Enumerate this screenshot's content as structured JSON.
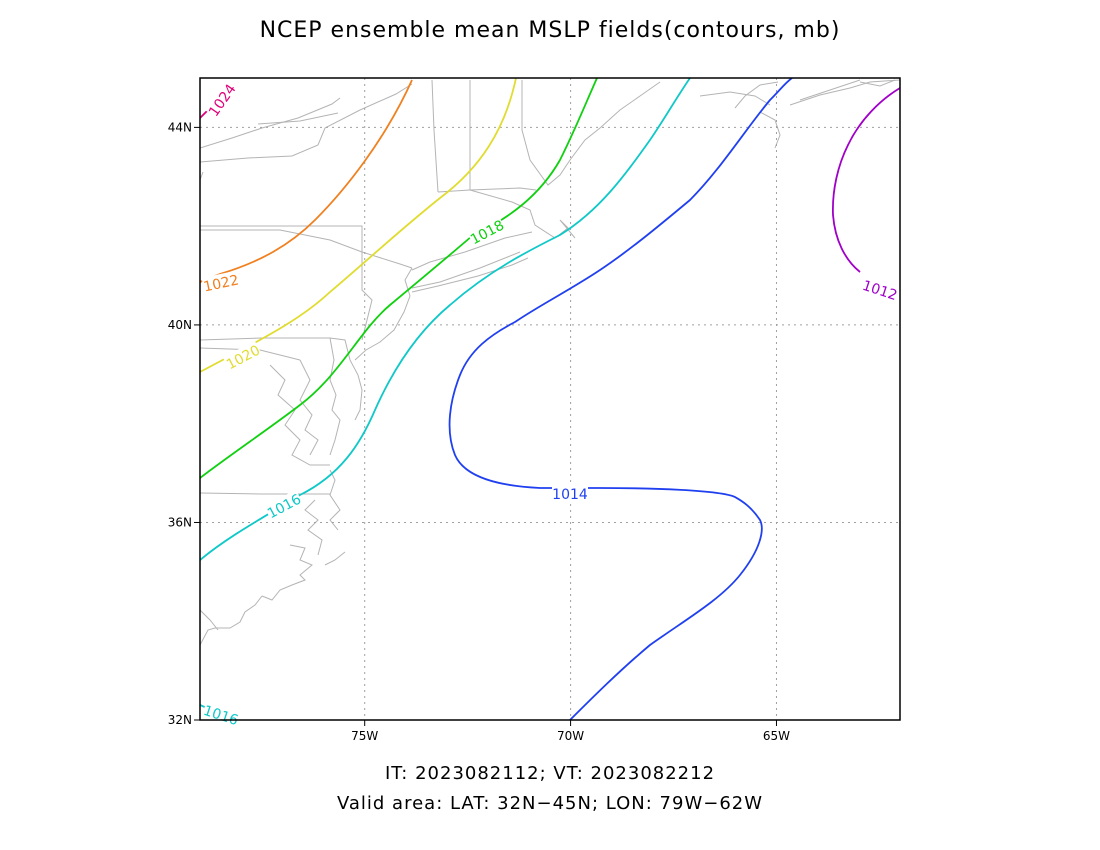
{
  "title": "NCEP ensemble mean MSLP fields(contours, mb)",
  "footer": {
    "times": "IT: 2023082112; VT: 2023082212",
    "area": "Valid area: LAT: 32N−45N; LON: 79W−62W"
  },
  "axes": {
    "lat_ticks": [
      {
        "value": 32,
        "label": "32N"
      },
      {
        "value": 36,
        "label": "36N"
      },
      {
        "value": 40,
        "label": "40N"
      },
      {
        "value": 44,
        "label": "44N"
      }
    ],
    "lon_ticks": [
      {
        "value": -75,
        "label": "75W"
      },
      {
        "value": -70,
        "label": "70W"
      },
      {
        "value": -65,
        "label": "65W"
      }
    ],
    "lat_range": [
      32,
      45
    ],
    "lon_range": [
      -79,
      -62
    ],
    "grid": "dotted"
  },
  "contours": [
    {
      "level": 1024,
      "label": "1024",
      "color": "#e0007a"
    },
    {
      "level": 1022,
      "label": "1022",
      "color": "#f08020"
    },
    {
      "level": 1020,
      "label": "1020",
      "color": "#e0dc30"
    },
    {
      "level": 1018,
      "label": "1018",
      "color": "#10d010"
    },
    {
      "level": 1016,
      "label": "1016",
      "color": "#10c8c8"
    },
    {
      "level": 1014,
      "label": "1014",
      "color": "#2040f0"
    },
    {
      "level": 1012,
      "label": "1012",
      "color": "#a000c8"
    }
  ],
  "colors": {
    "coastline": "#b4b4b4",
    "grid": "#a0a0a0",
    "frame": "#000000"
  }
}
